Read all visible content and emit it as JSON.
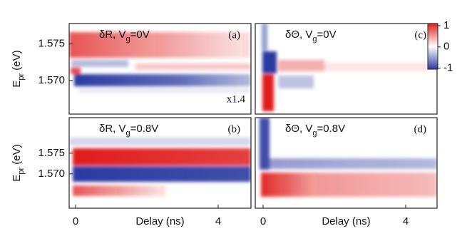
{
  "chart_data": [
    {
      "type": "heatmap",
      "title": [
        "δR, V",
        "g",
        "=0V"
      ],
      "label": "(a)",
      "annotation": "x1.4",
      "y_label": [
        "E",
        "pr",
        " (eV)"
      ],
      "xlim": [
        -0.18,
        4.92
      ],
      "ylim": [
        1.5654,
        1.5778
      ],
      "yticks": [
        1.575,
        {
          "value": 1.57,
          "label": "1.570"
        }
      ]
    },
    {
      "type": "heatmap",
      "title": [
        "δR, V",
        "g",
        "=0.8V"
      ],
      "label": "(b)",
      "y_label": [
        "E",
        "pr",
        " (eV)"
      ],
      "x_label": "Delay (ns)",
      "xlim": [
        -0.18,
        4.92
      ],
      "ylim": [
        1.5617,
        1.5836
      ],
      "yticks": [
        1.575,
        {
          "value": 1.57,
          "label": "1.570"
        }
      ],
      "xticks": [
        0,
        4
      ]
    },
    {
      "type": "heatmap",
      "title": [
        "δΘ, V",
        "g",
        "=0V"
      ],
      "label": "(c)",
      "xlim": [
        -0.22,
        4.88
      ],
      "ylim": [
        1.5654,
        1.5778
      ],
      "colorbar": {
        "lim": [
          -1.05,
          1.1
        ],
        "ticks": [
          1,
          0,
          -1
        ],
        "colors": [
          "#2b3ba0",
          "#ffffff",
          "#e01e1c"
        ]
      }
    },
    {
      "type": "heatmap",
      "title": [
        "δΘ, V",
        "g",
        "=0.8V"
      ],
      "label": "(d)",
      "x_label": "Delay (ns)",
      "xlim": [
        -0.22,
        4.88
      ],
      "ylim": [
        1.5617,
        1.5836
      ],
      "xticks": [
        0,
        4
      ]
    }
  ]
}
